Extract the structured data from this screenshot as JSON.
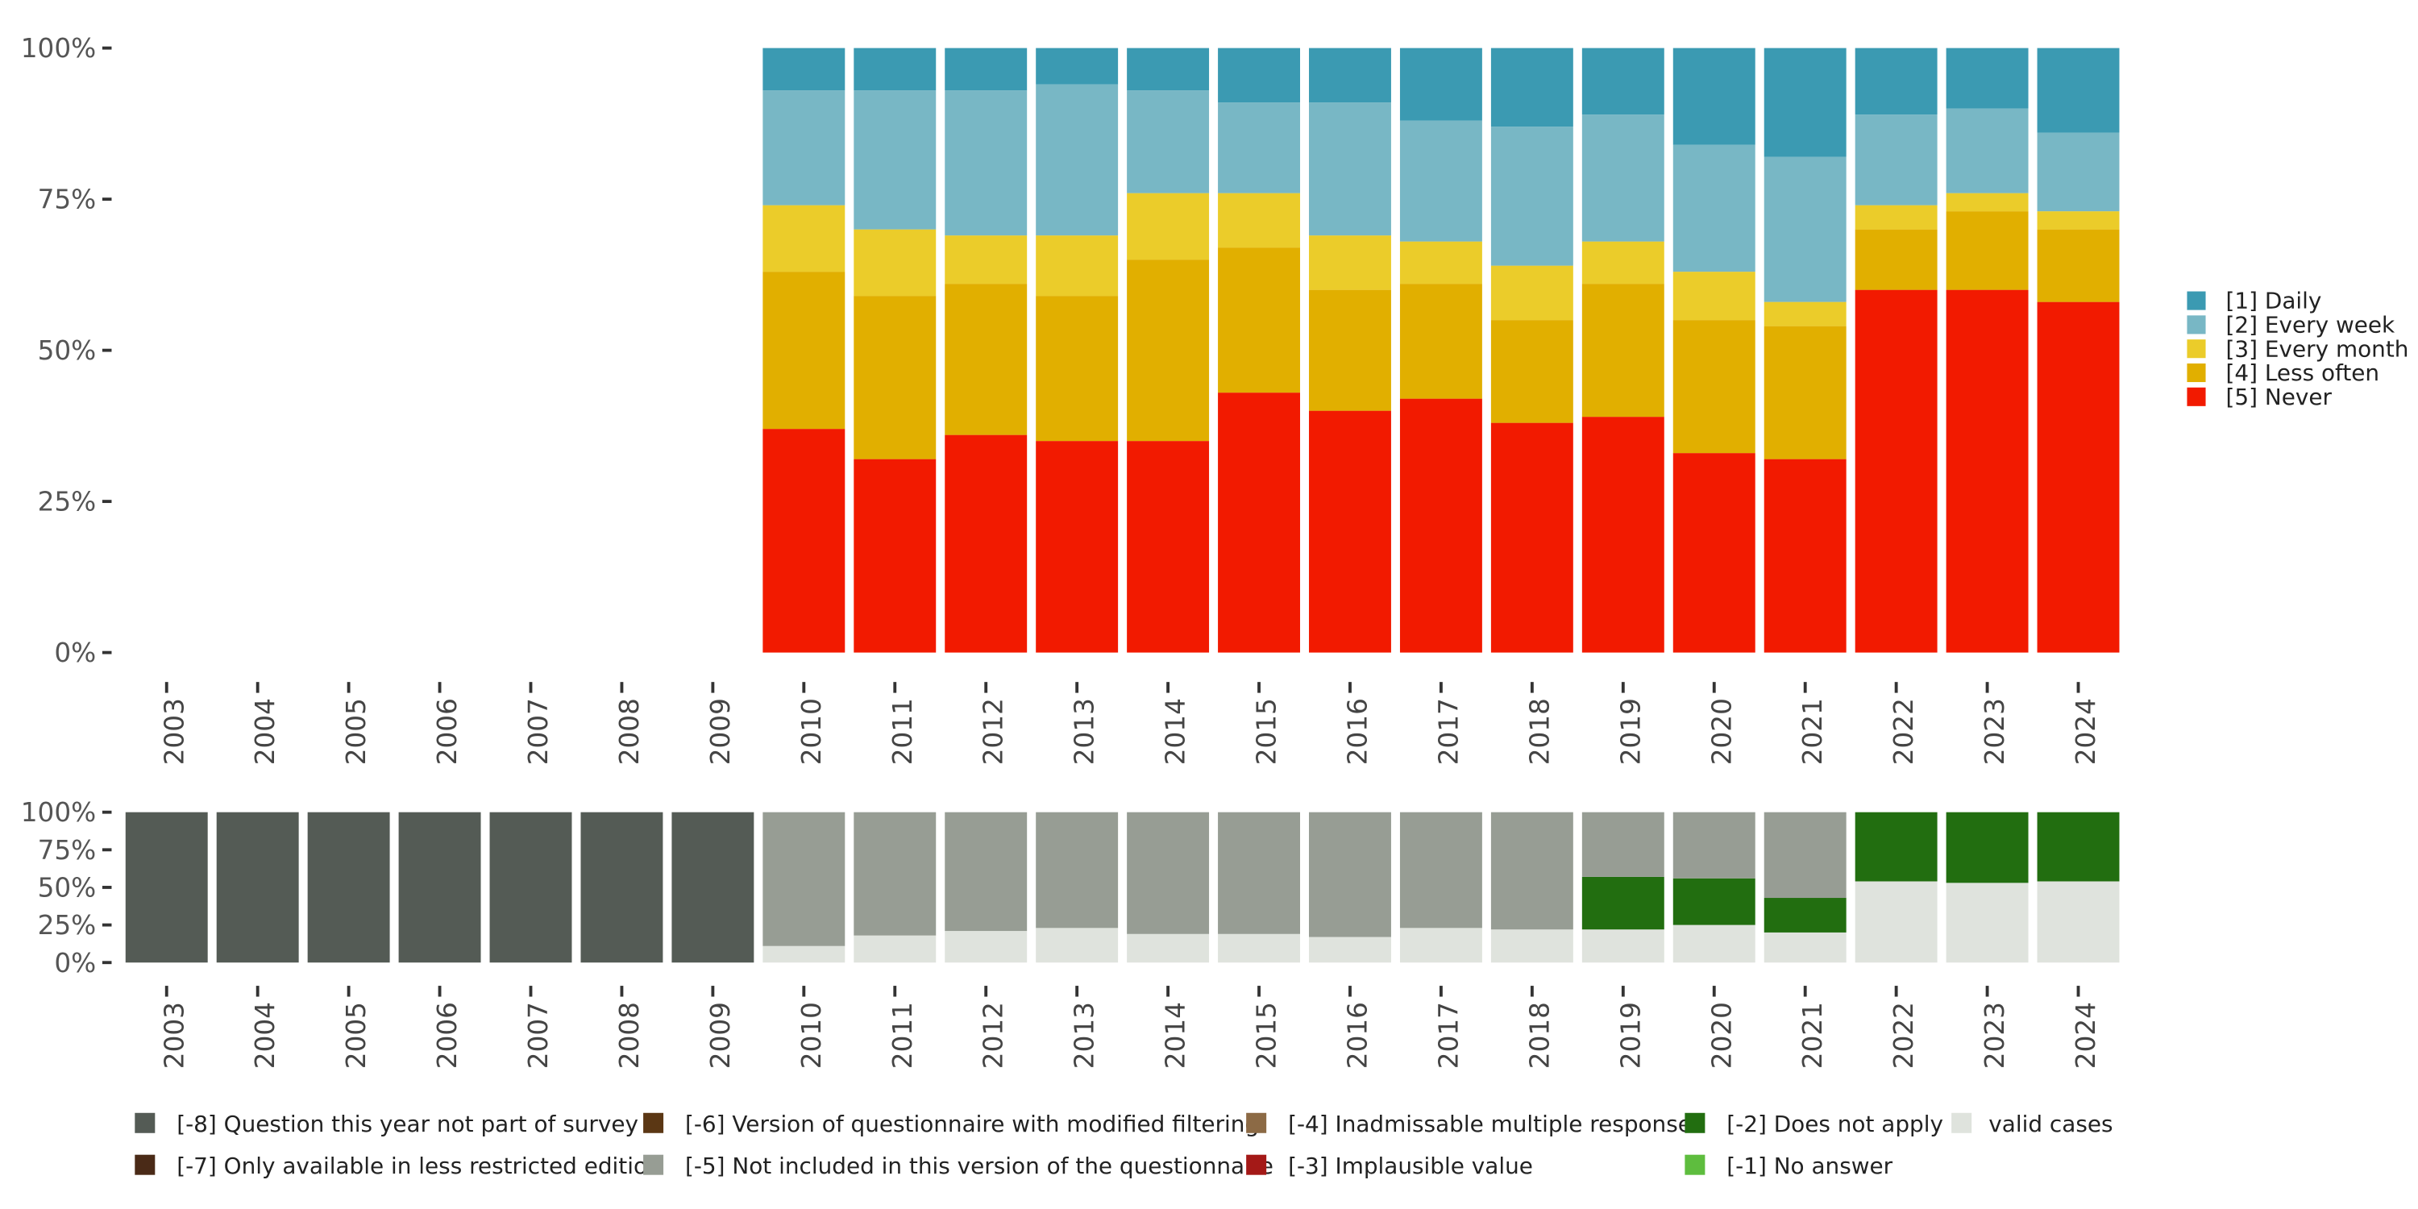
{
  "chart_data": [
    {
      "type": "bar",
      "stacked": true,
      "percent": true,
      "categories": [
        "2003",
        "2004",
        "2005",
        "2006",
        "2007",
        "2008",
        "2009",
        "2010",
        "2011",
        "2012",
        "2013",
        "2014",
        "2015",
        "2016",
        "2017",
        "2018",
        "2019",
        "2020",
        "2021",
        "2022",
        "2023",
        "2024"
      ],
      "ylim": [
        0,
        1
      ],
      "yticks": [
        {
          "value": 0,
          "label": "0%"
        },
        {
          "value": 0.25,
          "label": "25%"
        },
        {
          "value": 0.5,
          "label": "50%"
        },
        {
          "value": 0.75,
          "label": "75%"
        },
        {
          "value": 1,
          "label": "100%"
        }
      ],
      "legend_position": "right",
      "series": [
        {
          "name": "[5] Never",
          "color": "#f21a00",
          "values": [
            null,
            null,
            null,
            null,
            null,
            null,
            null,
            0.37,
            0.32,
            0.36,
            0.35,
            0.35,
            0.43,
            0.4,
            0.42,
            0.38,
            0.39,
            0.33,
            0.32,
            0.6,
            0.6,
            0.58
          ]
        },
        {
          "name": "[4] Less often",
          "color": "#e1af00",
          "values": [
            null,
            null,
            null,
            null,
            null,
            null,
            null,
            0.26,
            0.27,
            0.25,
            0.24,
            0.3,
            0.24,
            0.2,
            0.19,
            0.17,
            0.22,
            0.22,
            0.22,
            0.1,
            0.13,
            0.12
          ]
        },
        {
          "name": "[3] Every month",
          "color": "#ebcc2a",
          "values": [
            null,
            null,
            null,
            null,
            null,
            null,
            null,
            0.11,
            0.11,
            0.08,
            0.1,
            0.11,
            0.09,
            0.09,
            0.07,
            0.09,
            0.07,
            0.08,
            0.04,
            0.04,
            0.03,
            0.03
          ]
        },
        {
          "name": "[2] Every week",
          "color": "#78b7c5",
          "values": [
            null,
            null,
            null,
            null,
            null,
            null,
            null,
            0.19,
            0.23,
            0.24,
            0.25,
            0.17,
            0.15,
            0.22,
            0.2,
            0.23,
            0.21,
            0.21,
            0.24,
            0.15,
            0.14,
            0.13
          ]
        },
        {
          "name": "[1] Daily",
          "color": "#3b9ab2",
          "values": [
            null,
            null,
            null,
            null,
            null,
            null,
            null,
            0.07,
            0.07,
            0.07,
            0.06,
            0.07,
            0.09,
            0.09,
            0.12,
            0.13,
            0.11,
            0.16,
            0.18,
            0.11,
            0.1,
            0.14
          ]
        }
      ]
    },
    {
      "type": "bar",
      "stacked": true,
      "percent": true,
      "categories": [
        "2003",
        "2004",
        "2005",
        "2006",
        "2007",
        "2008",
        "2009",
        "2010",
        "2011",
        "2012",
        "2013",
        "2014",
        "2015",
        "2016",
        "2017",
        "2018",
        "2019",
        "2020",
        "2021",
        "2022",
        "2023",
        "2024"
      ],
      "ylim": [
        0,
        1
      ],
      "yticks": [
        {
          "value": 0,
          "label": "0%"
        },
        {
          "value": 0.25,
          "label": "25%"
        },
        {
          "value": 0.5,
          "label": "50%"
        },
        {
          "value": 0.75,
          "label": "75%"
        },
        {
          "value": 1,
          "label": "100%"
        }
      ],
      "legend_position": "bottom",
      "series": [
        {
          "name": "valid cases",
          "color": "#dfe3dd",
          "values": [
            0,
            0,
            0,
            0,
            0,
            0,
            0,
            0.11,
            0.18,
            0.21,
            0.23,
            0.19,
            0.19,
            0.17,
            0.23,
            0.22,
            0.22,
            0.25,
            0.2,
            0.54,
            0.53,
            0.54
          ]
        },
        {
          "name": "[-1] No answer",
          "color": "#5ebd3e",
          "values": [
            0,
            0,
            0,
            0,
            0,
            0,
            0,
            0,
            0,
            0,
            0,
            0,
            0,
            0,
            0,
            0,
            0,
            0,
            0,
            0,
            0,
            0
          ]
        },
        {
          "name": "[-2] Does not apply",
          "color": "#226e10",
          "values": [
            0,
            0,
            0,
            0,
            0,
            0,
            0,
            0,
            0,
            0,
            0,
            0,
            0,
            0,
            0,
            0,
            0.35,
            0.31,
            0.23,
            0.46,
            0.47,
            0.46
          ]
        },
        {
          "name": "[-3] Implausible value",
          "color": "#a41917",
          "values": [
            0,
            0,
            0,
            0,
            0,
            0,
            0,
            0,
            0,
            0,
            0,
            0,
            0,
            0,
            0,
            0,
            0,
            0,
            0,
            0,
            0,
            0
          ]
        },
        {
          "name": "[-4] Inadmissable multiple response",
          "color": "#8c6a45",
          "values": [
            0,
            0,
            0,
            0,
            0,
            0,
            0,
            0,
            0,
            0,
            0,
            0,
            0,
            0,
            0,
            0,
            0,
            0,
            0,
            0,
            0,
            0
          ]
        },
        {
          "name": "[-5] Not included in this version of the questionnaire",
          "color": "#979d94",
          "values": [
            0,
            0,
            0,
            0,
            0,
            0,
            0,
            0.89,
            0.82,
            0.79,
            0.77,
            0.81,
            0.81,
            0.83,
            0.77,
            0.78,
            0.43,
            0.44,
            0.57,
            0,
            0,
            0
          ]
        },
        {
          "name": "[-6] Version of questionnaire with modified filtering",
          "color": "#5b3714",
          "values": [
            0,
            0,
            0,
            0,
            0,
            0,
            0,
            0,
            0,
            0,
            0,
            0,
            0,
            0,
            0,
            0,
            0,
            0,
            0,
            0,
            0,
            0
          ]
        },
        {
          "name": "[-7] Only available in less restricted edition",
          "color": "#4a2a17",
          "values": [
            0,
            0,
            0,
            0,
            0,
            0,
            0,
            0,
            0,
            0,
            0,
            0,
            0,
            0,
            0,
            0,
            0,
            0,
            0,
            0,
            0,
            0
          ]
        },
        {
          "name": "[-8] Question this year not part of survey",
          "color": "#545b55",
          "values": [
            1,
            1,
            1,
            1,
            1,
            1,
            1,
            0,
            0,
            0,
            0,
            0,
            0,
            0,
            0,
            0,
            0,
            0,
            0,
            0,
            0,
            0
          ]
        }
      ]
    }
  ],
  "legends": {
    "top": [
      {
        "label": "[1] Daily",
        "color": "#3b9ab2"
      },
      {
        "label": "[2] Every week",
        "color": "#78b7c5"
      },
      {
        "label": "[3] Every month",
        "color": "#ebcc2a"
      },
      {
        "label": "[4] Less often",
        "color": "#e1af00"
      },
      {
        "label": "[5] Never",
        "color": "#f21a00"
      }
    ],
    "bottom_rows": [
      [
        {
          "label": "[-8] Question this year not part of survey",
          "color": "#545b55"
        },
        {
          "label": "[-6] Version of questionnaire with modified filtering",
          "color": "#5b3714"
        },
        {
          "label": "[-4] Inadmissable multiple response",
          "color": "#8c6a45"
        },
        {
          "label": "[-2] Does not apply",
          "color": "#226e10"
        },
        {
          "label": "valid cases",
          "color": "#dfe3dd"
        }
      ],
      [
        {
          "label": "[-7] Only available in less restricted edition",
          "color": "#4a2a17"
        },
        {
          "label": "[-5] Not included in this version of the questionnaire",
          "color": "#979d94"
        },
        {
          "label": "[-3] Implausible value",
          "color": "#a41917"
        },
        {
          "label": "[-1] No answer",
          "color": "#5ebd3e"
        }
      ]
    ]
  }
}
